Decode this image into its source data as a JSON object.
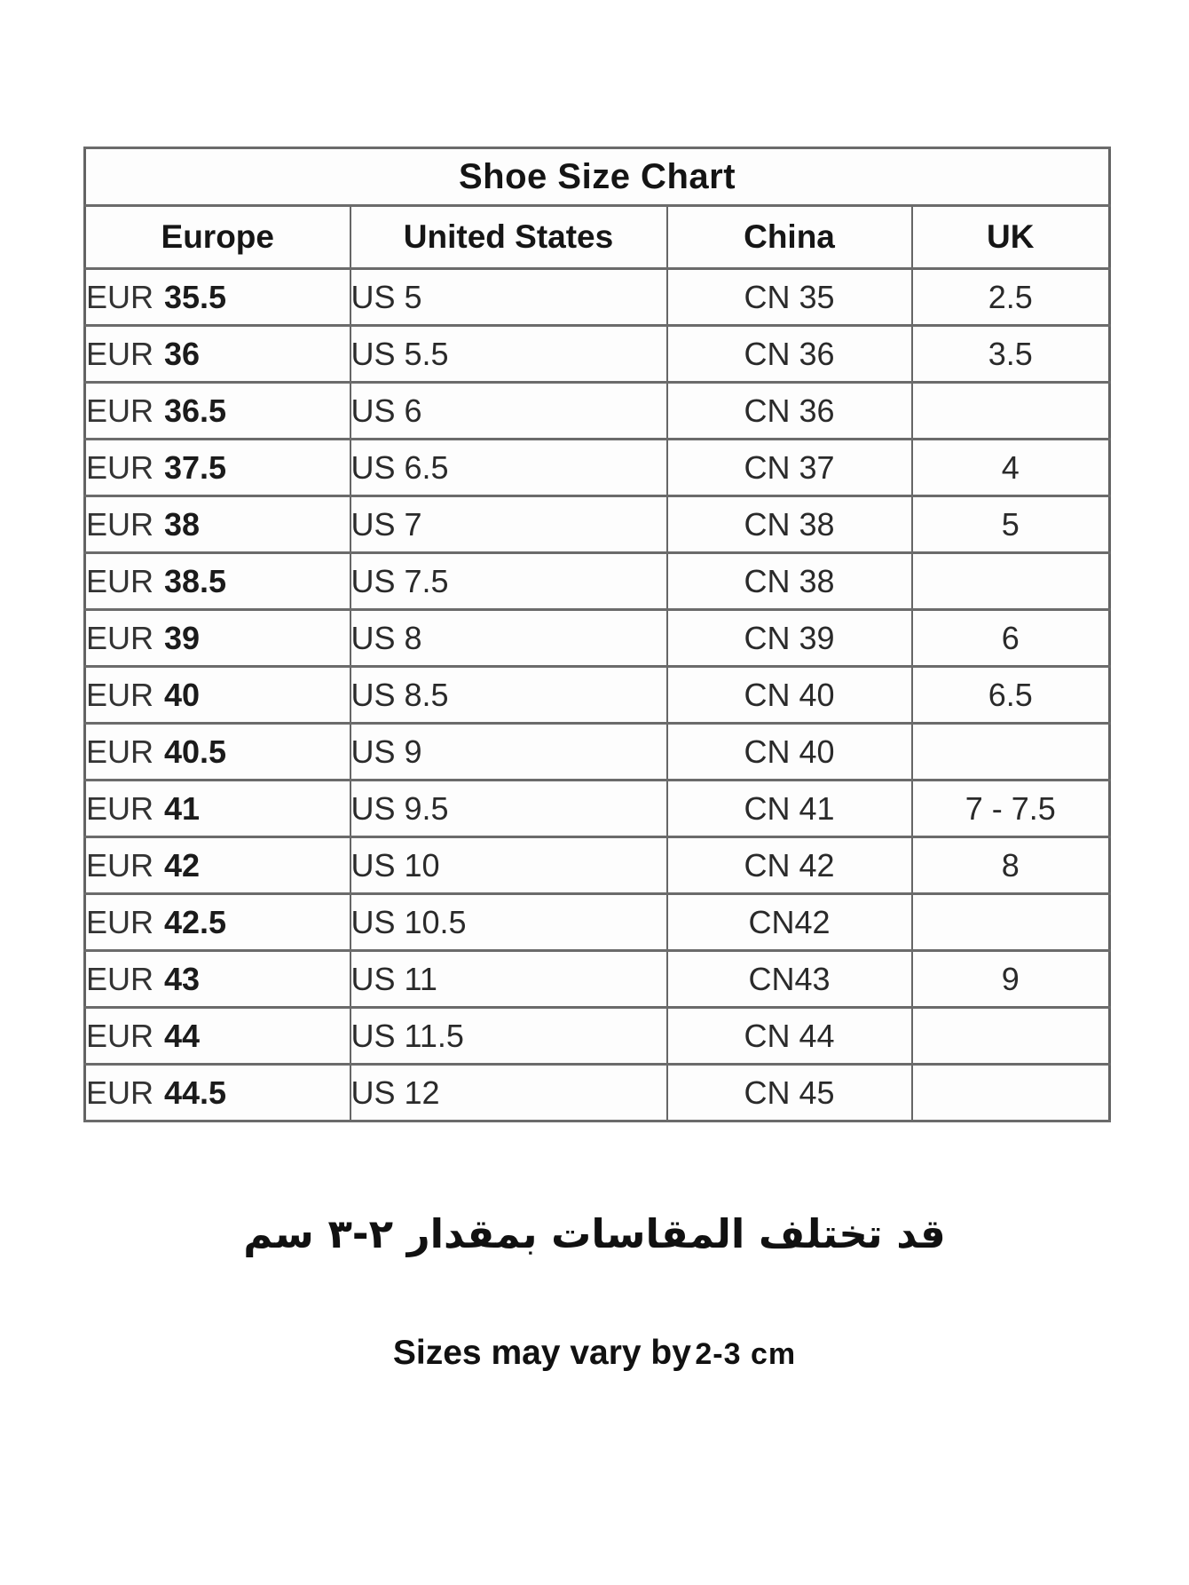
{
  "table": {
    "title": "Shoe Size Chart",
    "columns": [
      "Europe",
      "United States",
      "China",
      "UK"
    ],
    "rows": [
      {
        "eur_label": "EUR",
        "eur_size": "35.5",
        "us": "US 5",
        "cn": "CN 35",
        "uk": "2.5"
      },
      {
        "eur_label": "EUR",
        "eur_size": "36",
        "us": "US 5.5",
        "cn": "CN 36",
        "uk": "3.5"
      },
      {
        "eur_label": "EUR",
        "eur_size": "36.5",
        "us": "US 6",
        "cn": "CN 36",
        "uk": ""
      },
      {
        "eur_label": "EUR",
        "eur_size": "37.5",
        "us": "US 6.5",
        "cn": "CN 37",
        "uk": "4"
      },
      {
        "eur_label": "EUR",
        "eur_size": "38",
        "us": "US 7",
        "cn": "CN 38",
        "uk": "5"
      },
      {
        "eur_label": "EUR",
        "eur_size": "38.5",
        "us": "US 7.5",
        "cn": "CN 38",
        "uk": ""
      },
      {
        "eur_label": "EUR",
        "eur_size": "39",
        "us": "US 8",
        "cn": "CN 39",
        "uk": "6"
      },
      {
        "eur_label": "EUR",
        "eur_size": "40",
        "us": "US 8.5",
        "cn": "CN 40",
        "uk": "6.5"
      },
      {
        "eur_label": "EUR",
        "eur_size": "40.5",
        "us": "US 9",
        "cn": "CN 40",
        "uk": ""
      },
      {
        "eur_label": "EUR",
        "eur_size": "41",
        "us": "US 9.5",
        "cn": "CN 41",
        "uk": "7 - 7.5"
      },
      {
        "eur_label": "EUR",
        "eur_size": "42",
        "us": "US 10",
        "cn": "CN 42",
        "uk": "8"
      },
      {
        "eur_label": "EUR",
        "eur_size": "42.5",
        "us": "US 10.5",
        "cn": "CN42",
        "uk": ""
      },
      {
        "eur_label": "EUR",
        "eur_size": "43",
        "us": "US 11",
        "cn": "CN43",
        "uk": "9"
      },
      {
        "eur_label": "EUR",
        "eur_size": "44",
        "us": "US 11.5",
        "cn": "CN 44",
        "uk": ""
      },
      {
        "eur_label": "EUR",
        "eur_size": "44.5",
        "us": "US 12",
        "cn": "CN 45",
        "uk": ""
      }
    ]
  },
  "notes": {
    "arabic": "قد تختلف المقاسات بمقدار ٢-٣ سم",
    "english_main": "Sizes may vary by",
    "english_sub": "2-3 cm"
  },
  "colors": {
    "background": "#ffffff",
    "grid_line": "#666666",
    "text": "#1e1e1e"
  }
}
